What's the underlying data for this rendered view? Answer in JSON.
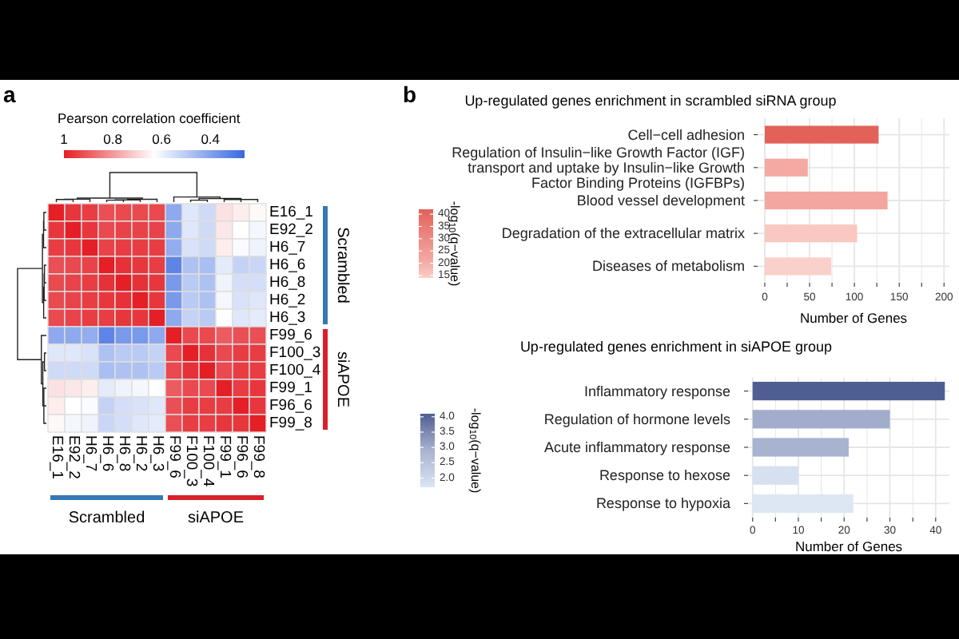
{
  "chart_data": [
    {
      "type": "heatmap",
      "annotations": [
        "a",
        "Scrambled",
        "siAPOE",
        "Scrambled",
        "siAPOE"
      ],
      "clabel": "Pearson correlation coefficient",
      "clim": [
        1,
        0.26
      ],
      "cticks": [
        1,
        0.8,
        0.6,
        0.4
      ],
      "categories": [
        "E16_1",
        "E92_2",
        "H6_7",
        "H6_6",
        "H6_8",
        "H6_2",
        "H6_3",
        "F99_6",
        "F100_3",
        "F100_4",
        "F99_1",
        "F96_6",
        "F99_8"
      ],
      "y_categories": [
        "E16_1",
        "E92_2",
        "H6_7",
        "H6_6",
        "H6_8",
        "H6_2",
        "H6_3",
        "F99_6",
        "F100_3",
        "F100_4",
        "F99_1",
        "F96_6",
        "F99_8"
      ],
      "cells": [
        [
          1,
          0.96,
          0.95,
          0.92,
          0.93,
          0.93,
          0.93,
          0.42,
          0.57,
          0.54,
          0.68,
          0.66,
          0.64
        ],
        [
          0.96,
          1,
          0.96,
          0.93,
          0.94,
          0.94,
          0.94,
          0.42,
          0.57,
          0.54,
          0.67,
          0.63,
          0.61
        ],
        [
          0.95,
          0.96,
          1,
          0.94,
          0.95,
          0.95,
          0.95,
          0.43,
          0.56,
          0.54,
          0.66,
          0.62,
          0.6
        ],
        [
          0.92,
          0.93,
          0.94,
          1,
          0.97,
          0.96,
          0.95,
          0.33,
          0.48,
          0.47,
          0.58,
          0.52,
          0.53
        ],
        [
          0.93,
          0.94,
          0.95,
          0.97,
          1,
          0.97,
          0.96,
          0.38,
          0.5,
          0.48,
          0.6,
          0.55,
          0.55
        ],
        [
          0.93,
          0.94,
          0.95,
          0.96,
          0.97,
          1,
          0.96,
          0.38,
          0.5,
          0.48,
          0.61,
          0.56,
          0.57
        ],
        [
          0.93,
          0.94,
          0.95,
          0.95,
          0.96,
          0.96,
          1,
          0.42,
          0.52,
          0.5,
          0.63,
          0.57,
          0.58
        ],
        [
          0.42,
          0.42,
          0.43,
          0.33,
          0.38,
          0.38,
          0.42,
          1,
          0.93,
          0.93,
          0.9,
          0.92,
          0.92
        ],
        [
          0.57,
          0.57,
          0.56,
          0.48,
          0.5,
          0.5,
          0.52,
          0.93,
          1,
          0.97,
          0.93,
          0.95,
          0.95
        ],
        [
          0.54,
          0.54,
          0.54,
          0.47,
          0.48,
          0.48,
          0.5,
          0.93,
          0.97,
          1,
          0.93,
          0.95,
          0.95
        ],
        [
          0.68,
          0.67,
          0.66,
          0.58,
          0.6,
          0.61,
          0.63,
          0.9,
          0.93,
          0.93,
          1,
          0.95,
          0.96
        ],
        [
          0.66,
          0.63,
          0.62,
          0.52,
          0.55,
          0.56,
          0.57,
          0.92,
          0.95,
          0.95,
          0.95,
          1,
          0.96
        ],
        [
          0.64,
          0.61,
          0.6,
          0.53,
          0.55,
          0.57,
          0.58,
          0.92,
          0.95,
          0.95,
          0.96,
          0.96,
          1
        ]
      ]
    },
    {
      "type": "bar",
      "orientation": "horizontal",
      "annotations": [
        "b"
      ],
      "title": "Up-regulated genes enrichment in scrambled siRNA group",
      "categories": [
        "Cell−cell adhesion",
        "Regulation of Insulin−like Growth Factor (IGF)\ntransport and uptake by Insulin−like Growth\nFactor Binding Proteins (IGFBPs)",
        "Blood vessel development",
        "Degradation of the extracellular matrix",
        "Diseases of metabolism"
      ],
      "values": [
        127,
        48,
        137,
        103,
        74
      ],
      "cvalues": [
        42,
        21,
        22,
        15,
        14
      ],
      "colors": [
        "#e2625a",
        "#f4aaa3",
        "#f3a69f",
        "#f9c8c1",
        "#fad0ca"
      ],
      "clabel": "-log$_{10}$(q−value)",
      "clim": [
        14,
        42
      ],
      "cticks": [
        15,
        20,
        25,
        30,
        35,
        40
      ],
      "xlabel": "Number of Genes",
      "xlim": [
        -8,
        206
      ],
      "xticks": [
        0,
        {
          "value": 25,
          "label": null
        },
        50,
        {
          "value": 75,
          "label": null
        },
        100,
        {
          "value": 125,
          "label": null
        },
        150,
        {
          "value": 175,
          "label": null
        },
        200
      ],
      "grid": true
    },
    {
      "type": "bar",
      "orientation": "horizontal",
      "title": "Up-regulated genes enrichment in siAPOE group",
      "categories": [
        "Inflammatory response",
        "Regulation of hormone levels",
        "Acute inflammatory response",
        "Response to hexose",
        "Response to hypoxia"
      ],
      "values": [
        42,
        30,
        21,
        10,
        22
      ],
      "cvalues": [
        4.1,
        3.0,
        2.9,
        1.8,
        1.7
      ],
      "colors": [
        "#4f5e92",
        "#a2adcc",
        "#a8b3d0",
        "#d6e0f0",
        "#dde7f4"
      ],
      "clabel": "-log$_{10}$(q−value)",
      "clim": [
        1.7,
        4.1
      ],
      "cticks": [
        {
          "value": 2,
          "label": "2.0"
        },
        2.5,
        {
          "value": 3,
          "label": "3.0"
        },
        3.5,
        {
          "value": 4,
          "label": "4.0"
        }
      ],
      "xlabel": "Number of Genes",
      "xlim": [
        -1,
        43
      ],
      "xticks": [
        0,
        {
          "value": 5,
          "label": null
        },
        10,
        {
          "value": 15,
          "label": null
        },
        20,
        {
          "value": 25,
          "label": null
        },
        30,
        {
          "value": 35,
          "label": null
        },
        40
      ],
      "grid": true
    }
  ]
}
